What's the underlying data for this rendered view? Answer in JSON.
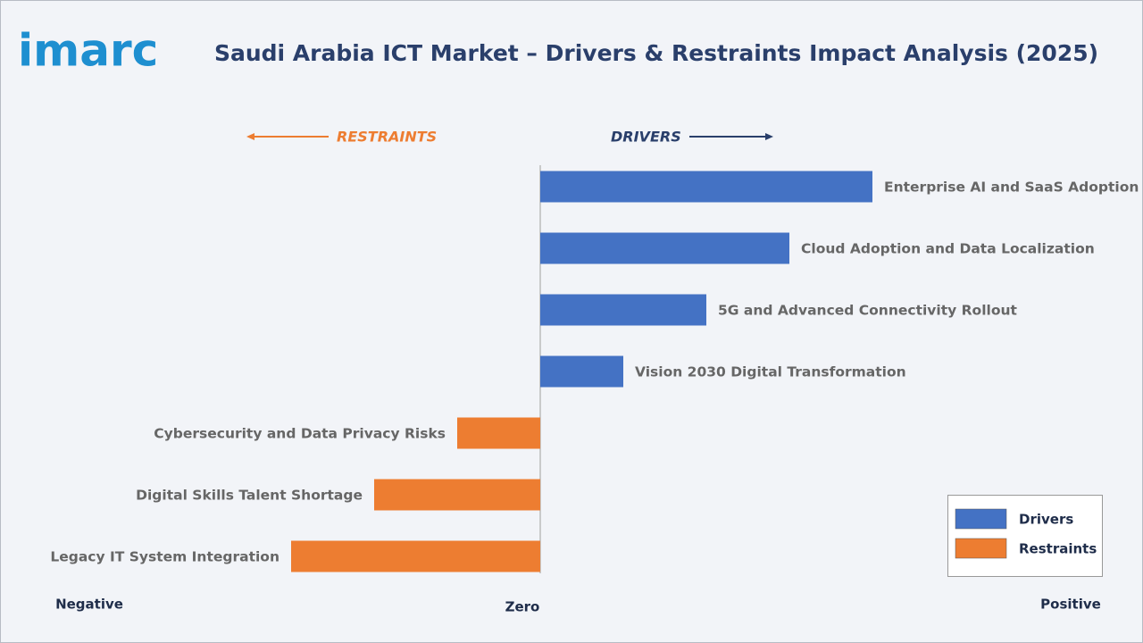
{
  "brand": "imarc",
  "chart_data": {
    "type": "bar",
    "orientation": "horizontal",
    "title": "Saudi Arabia ICT Market – Drivers & Restraints Impact Analysis (2025)",
    "restraints_label": "RESTRAINTS",
    "drivers_label": "DRIVERS",
    "categories": [
      "Enterprise AI and SaaS Adoption",
      "Cloud Adoption and Data Localization",
      "5G and Advanced Connectivity Rollout",
      "Vision 2030 Digital Transformation",
      "Cybersecurity and Data Privacy Risks",
      "Digital Skills Talent Shortage",
      "Legacy IT System Integration"
    ],
    "series": [
      {
        "name": "Drivers",
        "color": "#4472c4",
        "values": [
          4,
          3,
          2,
          1,
          null,
          null,
          null
        ]
      },
      {
        "name": "Restraints",
        "color": "#ed7d31",
        "values": [
          null,
          null,
          null,
          null,
          -1,
          -2,
          -3
        ]
      }
    ],
    "xlim": [
      -6.5,
      6.5
    ],
    "x_axis_labels": {
      "negative": "Negative",
      "zero": "Zero",
      "positive": "Positive"
    },
    "legend": "bottom-right"
  }
}
